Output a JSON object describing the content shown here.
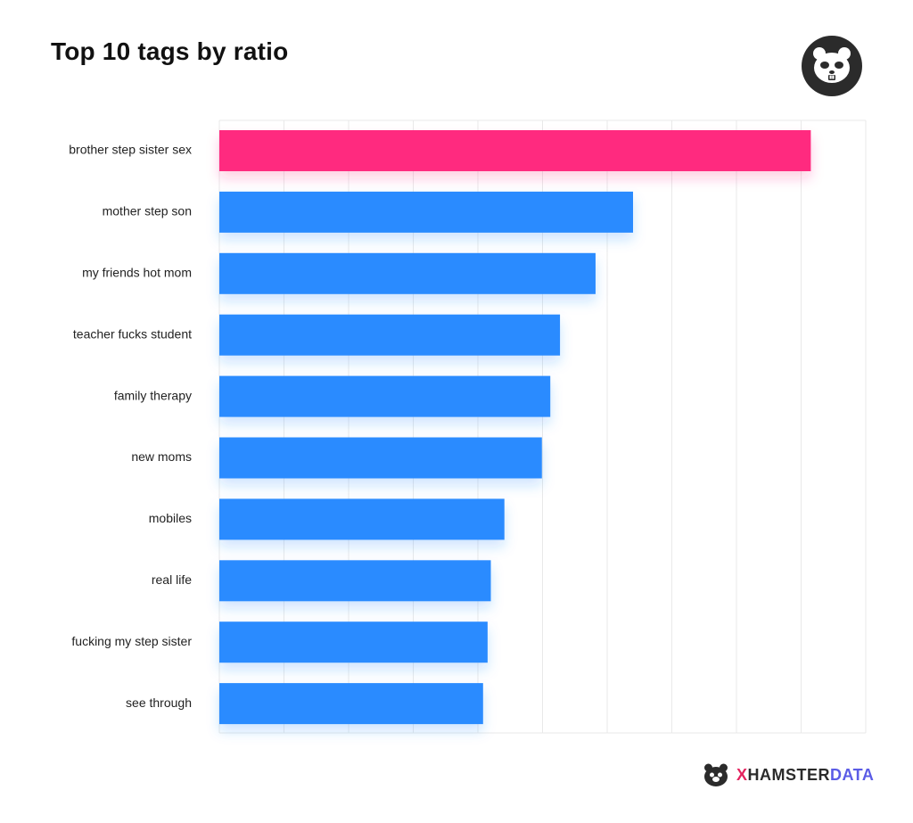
{
  "header": {
    "title": "Top 10 tags by ratio"
  },
  "logo": {
    "icon": "hamster-logo-icon"
  },
  "footer": {
    "brand_x": "X",
    "brand_hamster": "HAMSTER",
    "brand_data": "DATA"
  },
  "colors": {
    "highlight": "#ff2a7f",
    "bar": "#2b8bff",
    "grid": "#e9e9e9",
    "label": "#222222"
  },
  "chart_data": {
    "type": "bar",
    "orientation": "horizontal",
    "title": "Top 10 tags by ratio",
    "categories": [
      "brother step sister sex",
      "mother step son",
      "my friends hot mom",
      "teacher fucks student",
      "family therapy",
      "new moms",
      "mobiles",
      "real life",
      "fucking my step sister",
      "see through"
    ],
    "values": [
      9.15,
      6.4,
      5.82,
      5.27,
      5.12,
      4.99,
      4.41,
      4.2,
      4.15,
      4.08
    ],
    "highlight_index": 0,
    "xlim": [
      0,
      10
    ],
    "grid": true,
    "legend": "none"
  }
}
